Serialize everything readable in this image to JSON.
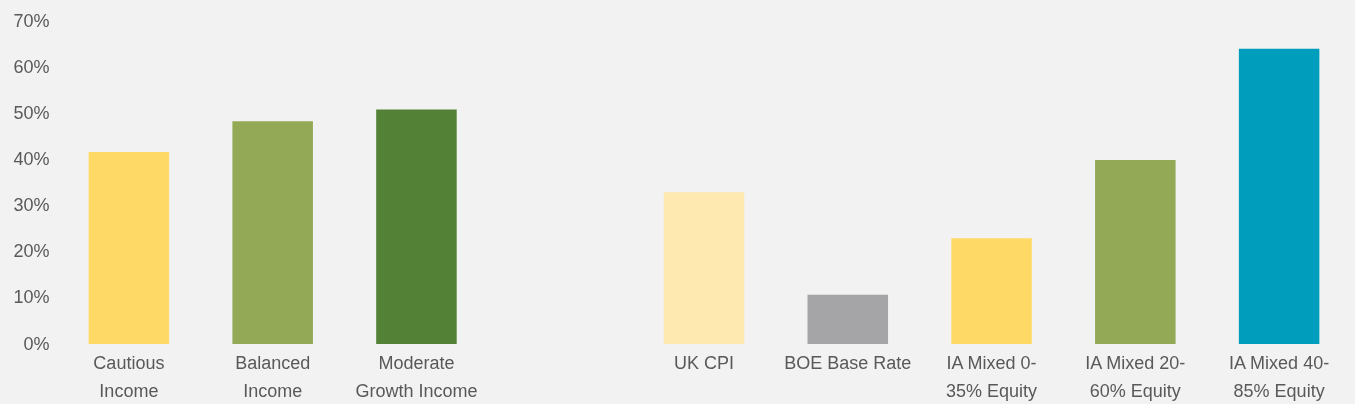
{
  "chart_data": {
    "type": "bar",
    "categories": [
      "Cautious Income",
      "Balanced Income",
      "Moderate Growth Income",
      null,
      "UK CPI",
      "BOE Base Rate",
      "IA Mixed 0-35% Equity",
      "IA Mixed 20-60% Equity",
      "IA Mixed 40-85% Equity"
    ],
    "values": [
      41.6,
      48.3,
      50.8,
      null,
      32.9,
      10.7,
      22.9,
      39.9,
      64.0
    ],
    "colors": [
      "#ffd966",
      "#93a955",
      "#538135",
      "#ffffff",
      "#fee9b1",
      "#a5a5a7",
      "#ffd966",
      "#93a955",
      "#009dbd"
    ],
    "ylim": [
      0,
      70
    ],
    "yticks": [
      {
        "value": 0,
        "label": "0%"
      },
      {
        "value": 10,
        "label": "10%"
      },
      {
        "value": 20,
        "label": "20%"
      },
      {
        "value": 30,
        "label": "30%"
      },
      {
        "value": 40,
        "label": "40%"
      },
      {
        "value": 50,
        "label": "50%"
      },
      {
        "value": 60,
        "label": "60%"
      },
      {
        "value": 70,
        "label": "70%"
      }
    ],
    "grid": false,
    "legend": false
  }
}
